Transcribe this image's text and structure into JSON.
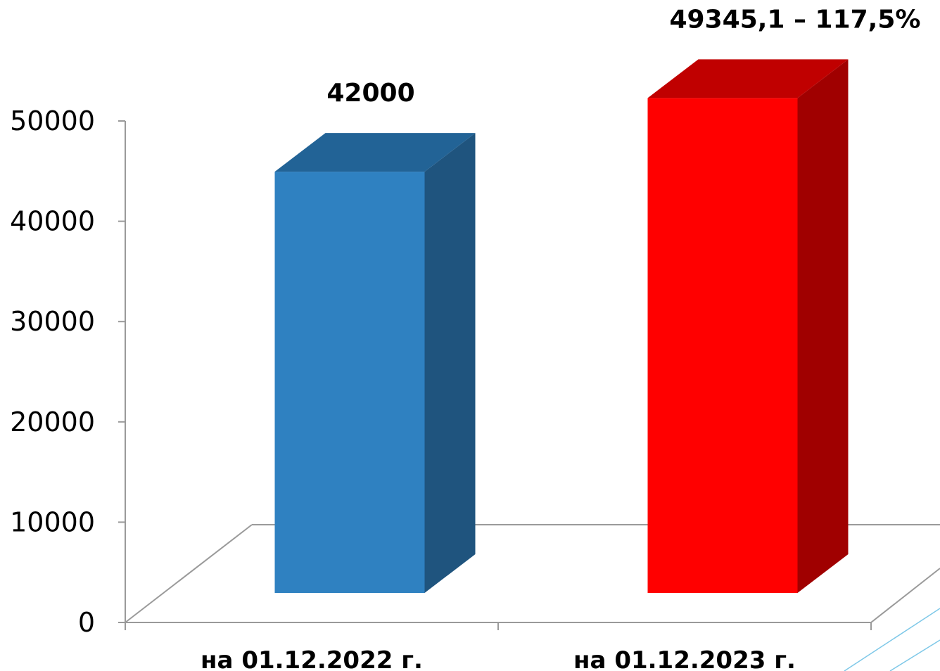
{
  "chart_data": {
    "type": "bar",
    "categories": [
      "на 01.12.2022 г.",
      "на 01.12.2023 г."
    ],
    "values": [
      42000,
      49345.1
    ],
    "data_labels": [
      "42000",
      "49345,1 – 117,5%"
    ],
    "y_ticks": [
      "0",
      "10000",
      "20000",
      "30000",
      "40000",
      "50000"
    ],
    "ylim": [
      0,
      50000
    ],
    "colors": {
      "bar_1": {
        "front": "#2f81c1",
        "top": "#226396",
        "side": "#1f547e"
      },
      "bar_2": {
        "front": "#ff0000",
        "top": "#c00000",
        "side": "#a00000"
      }
    },
    "style": "3d-bar",
    "grid": false
  }
}
